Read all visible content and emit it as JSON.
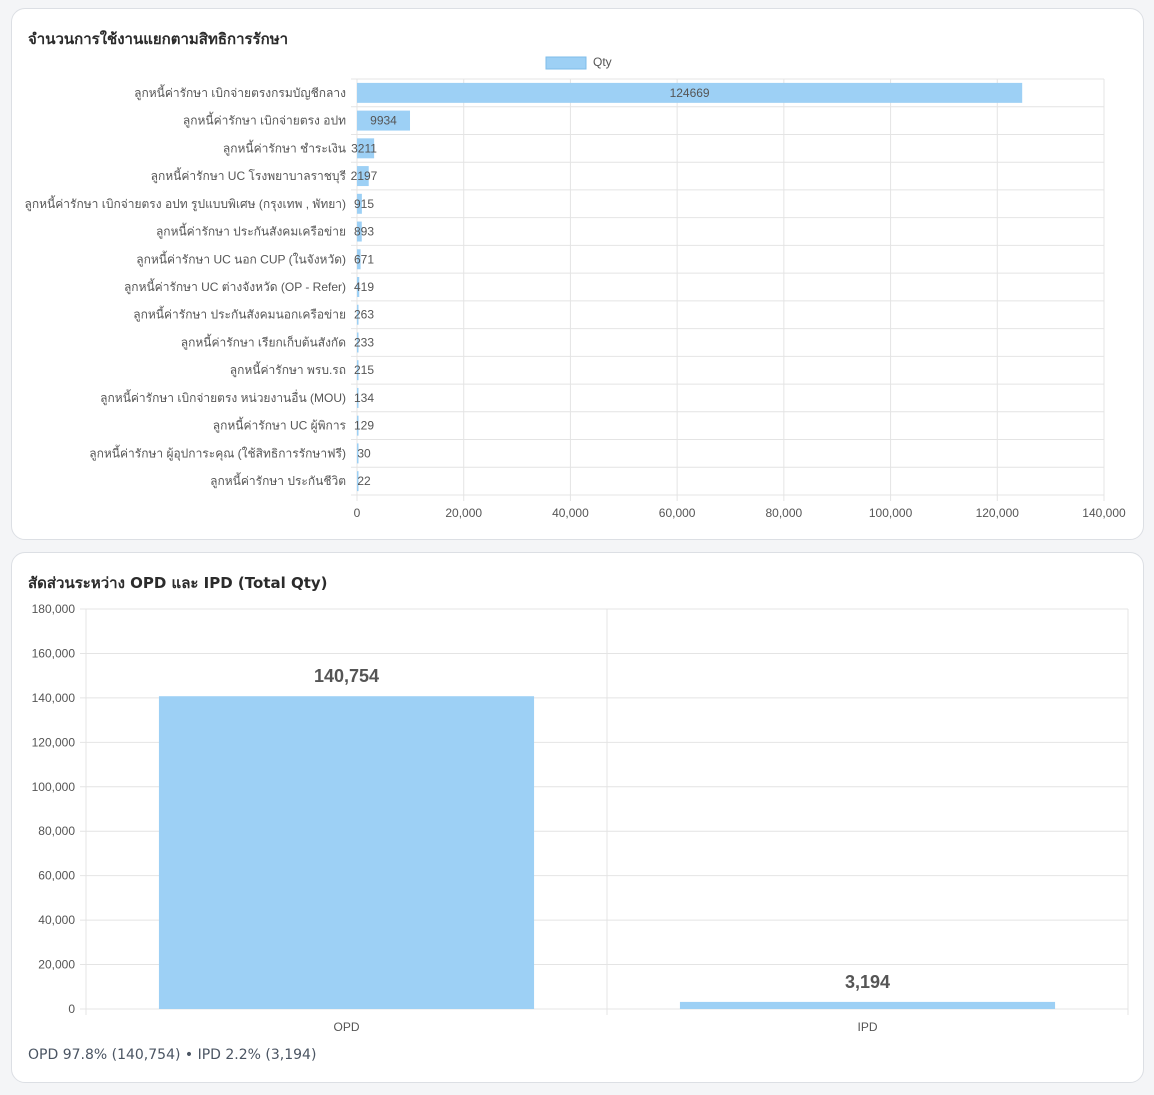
{
  "card1": {
    "title": "จำนวนการใช้งานแยกตามสิทธิการรักษา"
  },
  "card2": {
    "title": "สัดส่วนระหว่าง OPD และ IPD (Total Qty)",
    "summary": "OPD 97.8% (140,754) • IPD 2.2% (3,194)"
  },
  "colors": {
    "bar": "#9dd0f5",
    "barStroke": "#7fbde9",
    "grid": "#e4e4e4",
    "axisText": "#555555"
  },
  "chart_data": [
    {
      "type": "bar",
      "orientation": "horizontal",
      "title": "จำนวนการใช้งานแยกตามสิทธิการรักษา",
      "legend": "top",
      "series": [
        {
          "name": "Qty",
          "values": [
            124669,
            9934,
            3211,
            2197,
            915,
            893,
            671,
            419,
            263,
            233,
            215,
            134,
            129,
            30,
            22
          ]
        }
      ],
      "categories": [
        "ลูกหนี้ค่ารักษา เบิกจ่ายตรงกรมบัญชีกลาง",
        "ลูกหนี้ค่ารักษา เบิกจ่ายตรง อปท",
        "ลูกหนี้ค่ารักษา ชำระเงิน",
        "ลูกหนี้ค่ารักษา UC โรงพยาบาลราชบุรี",
        "ลูกหนี้ค่ารักษา เบิกจ่ายตรง อปท รูปแบบพิเศษ (กรุงเทพ , พัทยา)",
        "ลูกหนี้ค่ารักษา ประกันสังคมเครือข่าย",
        "ลูกหนี้ค่ารักษา UC นอก CUP (ในจังหวัด)",
        "ลูกหนี้ค่ารักษา UC ต่างจังหวัด (OP - Refer)",
        "ลูกหนี้ค่ารักษา ประกันสังคมนอกเครือข่าย",
        "ลูกหนี้ค่ารักษา เรียกเก็บต้นสังกัด",
        "ลูกหนี้ค่ารักษา พรบ.รถ",
        "ลูกหนี้ค่ารักษา เบิกจ่ายตรง หน่วยงานอื่น (MOU)",
        "ลูกหนี้ค่ารักษา UC ผู้พิการ",
        "ลูกหนี้ค่ารักษา ผู้อุปการะคุณ (ใช้สิทธิการรักษาฟรี)",
        "ลูกหนี้ค่ารักษา ประกันชีวิต"
      ],
      "xlim": [
        0,
        140000
      ],
      "xticks": [
        "0",
        "20,000",
        "40,000",
        "60,000",
        "80,000",
        "100,000",
        "120,000",
        "140,000"
      ],
      "grid": true
    },
    {
      "type": "bar",
      "title": "สัดส่วนระหว่าง OPD และ IPD (Total Qty)",
      "categories": [
        "OPD",
        "IPD"
      ],
      "values": [
        140754,
        3194
      ],
      "value_labels": [
        "140,754",
        "3,194"
      ],
      "ylim": [
        0,
        180000
      ],
      "yticks": [
        "0",
        "20,000",
        "40,000",
        "60,000",
        "80,000",
        "100,000",
        "120,000",
        "140,000",
        "160,000",
        "180,000"
      ],
      "grid": true
    }
  ]
}
